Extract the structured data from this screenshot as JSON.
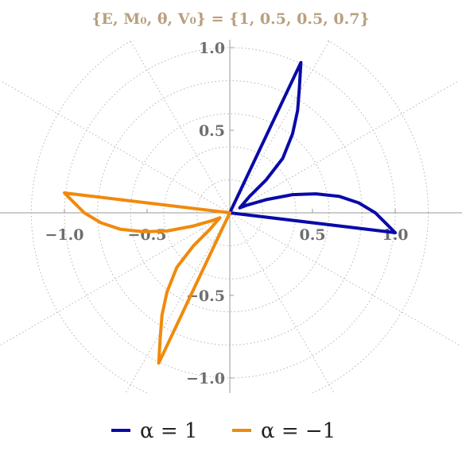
{
  "chart_data": {
    "type": "line",
    "subtype": "polar",
    "title": "{E, M₀, θ, V₀} = {1, 0.5, 0.5, 0.7}",
    "xlim": [
      -1.35,
      1.35
    ],
    "ylim": [
      -1.1,
      1.05
    ],
    "x_ticks": [
      -1.0,
      -0.5,
      0.5,
      1.0
    ],
    "x_tick_labels": [
      "−1.0",
      "−0.5",
      "0.5",
      "1.0"
    ],
    "y_ticks": [
      1.0,
      0.5,
      -0.5,
      -1.0
    ],
    "y_tick_labels": [
      "1.0",
      "0.5",
      "−0.5",
      "−1.0"
    ],
    "polar_grid": {
      "radii": [
        0.2,
        0.4,
        0.6,
        0.8,
        1.0,
        1.2
      ],
      "spoke_step_deg": 30
    },
    "legend": "bottom",
    "series": [
      {
        "name": "α = 1",
        "color": "#0a0aa8",
        "points": [
          [
            0,
            0
          ],
          [
            1.0,
            -0.12
          ],
          [
            0.95,
            -0.07
          ],
          [
            0.88,
            0.0
          ],
          [
            0.78,
            0.06
          ],
          [
            0.66,
            0.1
          ],
          [
            0.52,
            0.115
          ],
          [
            0.38,
            0.11
          ],
          [
            0.22,
            0.08
          ],
          [
            0.1,
            0.045
          ],
          [
            0.06,
            0.03
          ],
          [
            0.12,
            0.1
          ],
          [
            0.22,
            0.2
          ],
          [
            0.32,
            0.33
          ],
          [
            0.38,
            0.48
          ],
          [
            0.41,
            0.62
          ],
          [
            0.42,
            0.75
          ],
          [
            0.43,
            0.91
          ],
          [
            0.0,
            0.0
          ]
        ]
      },
      {
        "name": "α = −1",
        "color": "#f08a0c",
        "points": [
          [
            0,
            0
          ],
          [
            -1.0,
            0.12
          ],
          [
            -0.95,
            0.07
          ],
          [
            -0.88,
            0.0
          ],
          [
            -0.78,
            -0.06
          ],
          [
            -0.66,
            -0.1
          ],
          [
            -0.52,
            -0.115
          ],
          [
            -0.38,
            -0.11
          ],
          [
            -0.22,
            -0.08
          ],
          [
            -0.1,
            -0.045
          ],
          [
            -0.06,
            -0.03
          ],
          [
            -0.12,
            -0.1
          ],
          [
            -0.22,
            -0.2
          ],
          [
            -0.32,
            -0.33
          ],
          [
            -0.38,
            -0.48
          ],
          [
            -0.41,
            -0.62
          ],
          [
            -0.42,
            -0.75
          ],
          [
            -0.43,
            -0.91
          ],
          [
            0.0,
            0.0
          ]
        ]
      }
    ]
  }
}
